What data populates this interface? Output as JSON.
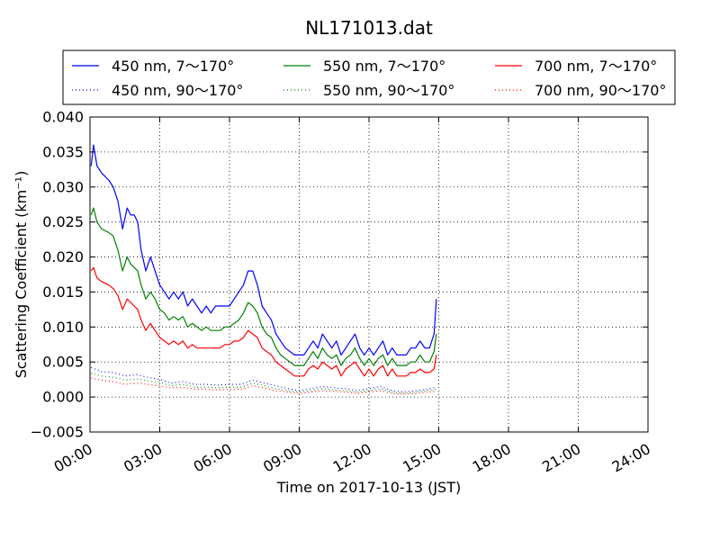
{
  "chart_data": {
    "type": "line",
    "title": "NL171013.dat",
    "xlabel": "Time on 2017-10-13 (JST)",
    "ylabel": "Scattering Coefficient (km⁻¹)",
    "xlim": [
      0,
      24
    ],
    "ylim": [
      -0.005,
      0.04
    ],
    "x_ticks": [
      0,
      3,
      6,
      9,
      12,
      15,
      18,
      21,
      24
    ],
    "x_tick_labels": [
      "00:00",
      "03:00",
      "06:00",
      "09:00",
      "12:00",
      "15:00",
      "18:00",
      "21:00",
      "24:00"
    ],
    "y_ticks": [
      -0.005,
      0,
      0.005,
      0.01,
      0.015,
      0.02,
      0.025,
      0.03,
      0.035,
      0.04
    ],
    "y_tick_labels": [
      "−0.005",
      "0.000",
      "0.005",
      "0.010",
      "0.015",
      "0.020",
      "0.025",
      "0.030",
      "0.035",
      "0.040"
    ],
    "grid": true,
    "legend_position": "top",
    "series": [
      {
        "name": "450 nm, 7～170°",
        "color": "#0000ff",
        "style": "solid",
        "x": [
          0.05,
          0.15,
          0.3,
          0.5,
          0.8,
          1.0,
          1.2,
          1.4,
          1.6,
          1.75,
          1.9,
          2.05,
          2.2,
          2.4,
          2.6,
          2.8,
          3.0,
          3.2,
          3.4,
          3.6,
          3.8,
          4.0,
          4.2,
          4.4,
          4.6,
          4.8,
          5.0,
          5.2,
          5.4,
          5.6,
          5.8,
          6.0,
          6.2,
          6.4,
          6.6,
          6.8,
          7.0,
          7.2,
          7.4,
          7.6,
          7.8,
          8.0,
          8.2,
          8.4,
          8.6,
          8.8,
          9.0,
          9.2,
          9.4,
          9.6,
          9.8,
          10.0,
          10.2,
          10.4,
          10.6,
          10.8,
          11.0,
          11.2,
          11.4,
          11.6,
          11.8,
          12.0,
          12.2,
          12.4,
          12.6,
          12.8,
          13.0,
          13.2,
          13.4,
          13.6,
          13.8,
          14.0,
          14.2,
          14.4,
          14.6,
          14.8,
          14.9
        ],
        "values": [
          0.033,
          0.036,
          0.033,
          0.032,
          0.031,
          0.03,
          0.028,
          0.024,
          0.027,
          0.026,
          0.026,
          0.025,
          0.021,
          0.018,
          0.02,
          0.018,
          0.016,
          0.015,
          0.014,
          0.015,
          0.014,
          0.015,
          0.013,
          0.014,
          0.013,
          0.012,
          0.013,
          0.012,
          0.013,
          0.013,
          0.013,
          0.013,
          0.014,
          0.015,
          0.016,
          0.018,
          0.018,
          0.016,
          0.013,
          0.012,
          0.011,
          0.009,
          0.008,
          0.007,
          0.0065,
          0.006,
          0.006,
          0.006,
          0.007,
          0.008,
          0.007,
          0.009,
          0.008,
          0.007,
          0.008,
          0.006,
          0.007,
          0.008,
          0.009,
          0.007,
          0.006,
          0.007,
          0.006,
          0.007,
          0.008,
          0.006,
          0.007,
          0.006,
          0.006,
          0.006,
          0.007,
          0.007,
          0.008,
          0.007,
          0.007,
          0.009,
          0.014
        ]
      },
      {
        "name": "550 nm, 7～170°",
        "color": "#008000",
        "style": "solid",
        "x": [
          0.05,
          0.15,
          0.3,
          0.5,
          0.8,
          1.0,
          1.2,
          1.4,
          1.6,
          1.75,
          1.9,
          2.05,
          2.2,
          2.4,
          2.6,
          2.8,
          3.0,
          3.2,
          3.4,
          3.6,
          3.8,
          4.0,
          4.2,
          4.4,
          4.6,
          4.8,
          5.0,
          5.2,
          5.4,
          5.6,
          5.8,
          6.0,
          6.2,
          6.4,
          6.6,
          6.8,
          7.0,
          7.2,
          7.4,
          7.6,
          7.8,
          8.0,
          8.2,
          8.4,
          8.6,
          8.8,
          9.0,
          9.2,
          9.4,
          9.6,
          9.8,
          10.0,
          10.2,
          10.4,
          10.6,
          10.8,
          11.0,
          11.2,
          11.4,
          11.6,
          11.8,
          12.0,
          12.2,
          12.4,
          12.6,
          12.8,
          13.0,
          13.2,
          13.4,
          13.6,
          13.8,
          14.0,
          14.2,
          14.4,
          14.6,
          14.8,
          14.9
        ],
        "values": [
          0.026,
          0.027,
          0.025,
          0.024,
          0.0235,
          0.023,
          0.021,
          0.018,
          0.02,
          0.019,
          0.0185,
          0.018,
          0.016,
          0.014,
          0.015,
          0.014,
          0.0125,
          0.012,
          0.011,
          0.0115,
          0.011,
          0.0115,
          0.01,
          0.0105,
          0.01,
          0.0095,
          0.01,
          0.0095,
          0.0095,
          0.0095,
          0.01,
          0.01,
          0.0105,
          0.011,
          0.012,
          0.0135,
          0.013,
          0.012,
          0.01,
          0.009,
          0.0085,
          0.007,
          0.006,
          0.0055,
          0.005,
          0.0045,
          0.0045,
          0.0045,
          0.0055,
          0.0065,
          0.0055,
          0.007,
          0.006,
          0.0055,
          0.006,
          0.0045,
          0.0055,
          0.006,
          0.007,
          0.0055,
          0.0045,
          0.0055,
          0.0045,
          0.0055,
          0.006,
          0.0045,
          0.0055,
          0.0045,
          0.0045,
          0.0045,
          0.005,
          0.005,
          0.006,
          0.005,
          0.005,
          0.0065,
          0.009
        ]
      },
      {
        "name": "700 nm, 7～170°",
        "color": "#ff0000",
        "style": "solid",
        "x": [
          0.05,
          0.15,
          0.3,
          0.5,
          0.8,
          1.0,
          1.2,
          1.4,
          1.6,
          1.75,
          1.9,
          2.05,
          2.2,
          2.4,
          2.6,
          2.8,
          3.0,
          3.2,
          3.4,
          3.6,
          3.8,
          4.0,
          4.2,
          4.4,
          4.6,
          4.8,
          5.0,
          5.2,
          5.4,
          5.6,
          5.8,
          6.0,
          6.2,
          6.4,
          6.6,
          6.8,
          7.0,
          7.2,
          7.4,
          7.6,
          7.8,
          8.0,
          8.2,
          8.4,
          8.6,
          8.8,
          9.0,
          9.2,
          9.4,
          9.6,
          9.8,
          10.0,
          10.2,
          10.4,
          10.6,
          10.8,
          11.0,
          11.2,
          11.4,
          11.6,
          11.8,
          12.0,
          12.2,
          12.4,
          12.6,
          12.8,
          13.0,
          13.2,
          13.4,
          13.6,
          13.8,
          14.0,
          14.2,
          14.4,
          14.6,
          14.8,
          14.9
        ],
        "values": [
          0.018,
          0.0185,
          0.017,
          0.0165,
          0.016,
          0.0155,
          0.0145,
          0.0125,
          0.014,
          0.0135,
          0.013,
          0.0125,
          0.011,
          0.0095,
          0.0105,
          0.0095,
          0.0085,
          0.008,
          0.0075,
          0.008,
          0.0075,
          0.008,
          0.007,
          0.0075,
          0.007,
          0.007,
          0.007,
          0.007,
          0.007,
          0.007,
          0.0075,
          0.0075,
          0.008,
          0.008,
          0.0085,
          0.0095,
          0.009,
          0.0085,
          0.007,
          0.0065,
          0.006,
          0.005,
          0.0045,
          0.004,
          0.0035,
          0.003,
          0.003,
          0.003,
          0.004,
          0.0045,
          0.004,
          0.005,
          0.0045,
          0.004,
          0.0045,
          0.003,
          0.004,
          0.0045,
          0.005,
          0.004,
          0.003,
          0.004,
          0.003,
          0.004,
          0.0045,
          0.003,
          0.004,
          0.003,
          0.003,
          0.003,
          0.0035,
          0.0035,
          0.004,
          0.0035,
          0.0035,
          0.004,
          0.006
        ]
      },
      {
        "name": "450 nm, 90～170°",
        "color": "#0000ff",
        "style": "dotted",
        "x": [
          0.05,
          0.5,
          1.0,
          1.5,
          2.0,
          2.5,
          3.0,
          3.5,
          4.0,
          4.5,
          5.0,
          5.5,
          6.0,
          6.5,
          7.0,
          7.5,
          8.0,
          8.5,
          9.0,
          9.5,
          10.0,
          10.5,
          11.0,
          11.5,
          12.0,
          12.5,
          13.0,
          13.5,
          14.0,
          14.5,
          14.9
        ],
        "values": [
          0.0042,
          0.0036,
          0.0035,
          0.003,
          0.0032,
          0.0028,
          0.0025,
          0.002,
          0.0022,
          0.0018,
          0.0018,
          0.0017,
          0.0018,
          0.0018,
          0.0024,
          0.002,
          0.0016,
          0.0012,
          0.0009,
          0.0012,
          0.0015,
          0.0013,
          0.0012,
          0.0009,
          0.0012,
          0.0015,
          0.0009,
          0.0007,
          0.0009,
          0.0011,
          0.0014
        ]
      },
      {
        "name": "550 nm, 90～170°",
        "color": "#008000",
        "style": "dotted",
        "x": [
          0.05,
          0.5,
          1.0,
          1.5,
          2.0,
          2.5,
          3.0,
          3.5,
          4.0,
          4.5,
          5.0,
          5.5,
          6.0,
          6.5,
          7.0,
          7.5,
          8.0,
          8.5,
          9.0,
          9.5,
          10.0,
          10.5,
          11.0,
          11.5,
          12.0,
          12.5,
          13.0,
          13.5,
          14.0,
          14.5,
          14.9
        ],
        "values": [
          0.0034,
          0.003,
          0.0028,
          0.0024,
          0.0026,
          0.0023,
          0.0021,
          0.0016,
          0.0018,
          0.0014,
          0.0014,
          0.0013,
          0.0014,
          0.0014,
          0.002,
          0.0016,
          0.0012,
          0.0009,
          0.0007,
          0.0009,
          0.0012,
          0.001,
          0.0009,
          0.0007,
          0.0009,
          0.0012,
          0.0007,
          0.0005,
          0.0007,
          0.0009,
          0.0011
        ]
      },
      {
        "name": "700 nm, 90～170°",
        "color": "#ff0000",
        "style": "dotted",
        "x": [
          0.05,
          0.5,
          1.0,
          1.5,
          2.0,
          2.5,
          3.0,
          3.5,
          4.0,
          4.5,
          5.0,
          5.5,
          6.0,
          6.5,
          7.0,
          7.5,
          8.0,
          8.5,
          9.0,
          9.5,
          10.0,
          10.5,
          11.0,
          11.5,
          12.0,
          12.5,
          13.0,
          13.5,
          14.0,
          14.5,
          14.9
        ],
        "values": [
          0.0027,
          0.0024,
          0.0022,
          0.0018,
          0.002,
          0.0018,
          0.0016,
          0.0013,
          0.0014,
          0.0011,
          0.0011,
          0.001,
          0.0011,
          0.0011,
          0.0016,
          0.0013,
          0.0009,
          0.0007,
          0.0005,
          0.0007,
          0.0009,
          0.0008,
          0.0007,
          0.0005,
          0.0007,
          0.0009,
          0.0005,
          0.0004,
          0.0005,
          0.0007,
          0.0008
        ]
      }
    ]
  }
}
